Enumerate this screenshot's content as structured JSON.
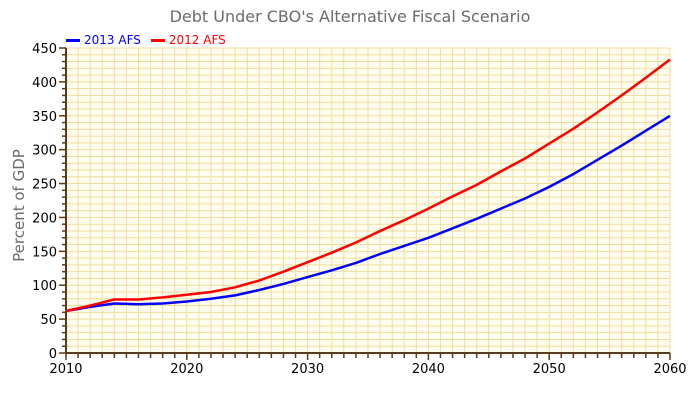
{
  "chart_data": {
    "type": "line",
    "title": "Debt Under CBO's Alternative Fiscal Scenario",
    "xlabel": "",
    "ylabel": "Percent of GDP",
    "xlim": [
      2010,
      2060
    ],
    "ylim": [
      0,
      450
    ],
    "x_ticks": [
      2010,
      2020,
      2030,
      2040,
      2050,
      2060
    ],
    "y_ticks": [
      0,
      50,
      100,
      150,
      200,
      250,
      300,
      350,
      400,
      450
    ],
    "grid": true,
    "legend_position": "top-left",
    "x": [
      2010,
      2012,
      2014,
      2016,
      2018,
      2020,
      2022,
      2024,
      2026,
      2028,
      2030,
      2032,
      2034,
      2036,
      2038,
      2040,
      2042,
      2044,
      2046,
      2048,
      2050,
      2052,
      2054,
      2056,
      2058,
      2060
    ],
    "series": [
      {
        "name": "2013 AFS",
        "color": "#0000ff",
        "values": [
          62,
          68,
          73,
          72,
          73,
          76,
          80,
          85,
          93,
          102,
          112,
          122,
          133,
          146,
          158,
          170,
          184,
          198,
          213,
          228,
          245,
          264,
          285,
          306,
          328,
          350
        ]
      },
      {
        "name": "2012 AFS",
        "color": "#ff0000",
        "values": [
          62,
          70,
          79,
          79,
          82,
          86,
          90,
          97,
          107,
          120,
          134,
          148,
          163,
          180,
          196,
          213,
          231,
          248,
          268,
          287,
          309,
          331,
          355,
          380,
          406,
          433
        ]
      }
    ]
  }
}
